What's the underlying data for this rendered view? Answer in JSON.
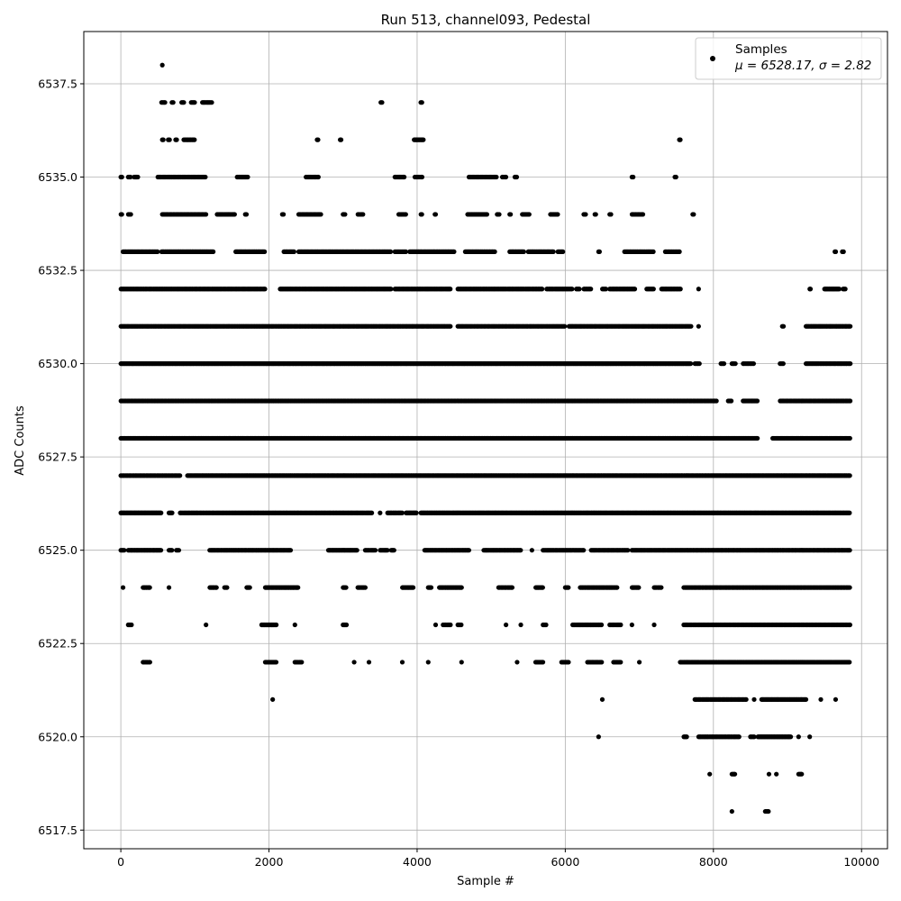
{
  "chart_data": {
    "type": "scatter",
    "title": "Run 513, channel093, Pedestal",
    "xlabel": "Sample #",
    "ylabel": "ADC Counts",
    "xlim": [
      -500,
      10350
    ],
    "ylim": [
      6517.0,
      6538.9
    ],
    "x_ticks": [
      0,
      2000,
      4000,
      6000,
      8000,
      10000
    ],
    "x_tick_labels": [
      "0",
      "2000",
      "4000",
      "6000",
      "8000",
      "10000"
    ],
    "y_ticks": [
      6517.5,
      6520.0,
      6522.5,
      6525.0,
      6527.5,
      6530.0,
      6532.5,
      6535.0,
      6537.5
    ],
    "y_tick_labels": [
      "6517.5",
      "6520.0",
      "6522.5",
      "6525.0",
      "6527.5",
      "6530.0",
      "6532.5",
      "6535.0",
      "6537.5"
    ],
    "grid": true,
    "legend_position": "top-right",
    "marker_color": "#000000",
    "series": [
      {
        "name": "Samples",
        "legend_label_line1": "Samples",
        "legend_label_line2": "μ = 6528.17, σ = 2.82",
        "points_description": "approx. 9850 samples over 0-9850 at integer ADC levels; listed ranges below",
        "level_ranges": [
          {
            "y": 6538,
            "ranges": [
              [
                560,
                560
              ]
            ]
          },
          {
            "y": 6537,
            "ranges": [
              [
                550,
                600
              ],
              [
                690,
                720
              ],
              [
                820,
                860
              ],
              [
                950,
                1000
              ],
              [
                1100,
                1230
              ],
              [
                3510,
                3530
              ],
              [
                4050,
                4070
              ]
            ]
          },
          {
            "y": 6536,
            "ranges": [
              [
                560,
                580
              ],
              [
                640,
                660
              ],
              [
                740,
                760
              ],
              [
                850,
                1000
              ],
              [
                2650,
                2670
              ],
              [
                2960,
                2980
              ],
              [
                3960,
                4090
              ],
              [
                7540,
                7560
              ]
            ]
          },
          {
            "y": 6535,
            "ranges": [
              [
                0,
                20
              ],
              [
                100,
                130
              ],
              [
                180,
                240
              ],
              [
                500,
                1150
              ],
              [
                1570,
                1720
              ],
              [
                2500,
                2680
              ],
              [
                3700,
                3830
              ],
              [
                3970,
                4070
              ],
              [
                4700,
                5070
              ],
              [
                5150,
                5200
              ],
              [
                5320,
                5350
              ],
              [
                6900,
                6920
              ],
              [
                7480,
                7500
              ]
            ]
          },
          {
            "y": 6534,
            "ranges": [
              [
                0,
                20
              ],
              [
                100,
                150
              ],
              [
                560,
                1150
              ],
              [
                1300,
                1550
              ],
              [
                1680,
                1700
              ],
              [
                2180,
                2200
              ],
              [
                2400,
                2700
              ],
              [
                3000,
                3030
              ],
              [
                3200,
                3280
              ],
              [
                3750,
                3850
              ],
              [
                4050,
                4070
              ],
              [
                4240,
                4260
              ],
              [
                4680,
                4950
              ],
              [
                5080,
                5120
              ],
              [
                5250,
                5270
              ],
              [
                5420,
                5520
              ],
              [
                5800,
                5900
              ],
              [
                6250,
                6280
              ],
              [
                6400,
                6420
              ],
              [
                6600,
                6620
              ],
              [
                6900,
                7050
              ],
              [
                7720,
                7740
              ]
            ]
          },
          {
            "y": 6533,
            "ranges": [
              [
                30,
                500
              ],
              [
                550,
                1250
              ],
              [
                1550,
                1950
              ],
              [
                2200,
                2350
              ],
              [
                2400,
                3650
              ],
              [
                3700,
                3850
              ],
              [
                3900,
                4500
              ],
              [
                4650,
                5050
              ],
              [
                5250,
                5450
              ],
              [
                5500,
                5850
              ],
              [
                5900,
                5980
              ],
              [
                6450,
                6470
              ],
              [
                6800,
                7200
              ],
              [
                7350,
                7550
              ],
              [
                9640,
                9660
              ],
              [
                9740,
                9760
              ]
            ]
          },
          {
            "y": 6532,
            "ranges": [
              [
                0,
                1950
              ],
              [
                2150,
                3650
              ],
              [
                3700,
                4450
              ],
              [
                4550,
                5700
              ],
              [
                5750,
                6100
              ],
              [
                6150,
                6200
              ],
              [
                6250,
                6350
              ],
              [
                6500,
                6550
              ],
              [
                6600,
                6950
              ],
              [
                7100,
                7200
              ],
              [
                7300,
                7560
              ],
              [
                7800,
                7800
              ],
              [
                9300,
                9320
              ],
              [
                9500,
                9700
              ],
              [
                9750,
                9780
              ]
            ]
          },
          {
            "y": 6531,
            "ranges": [
              [
                0,
                4450
              ],
              [
                4550,
                6000
              ],
              [
                6050,
                7700
              ],
              [
                7800,
                7800
              ],
              [
                8930,
                8950
              ],
              [
                9250,
                9850
              ]
            ]
          },
          {
            "y": 6530,
            "ranges": [
              [
                0,
                7700
              ],
              [
                7750,
                7820
              ],
              [
                8100,
                8150
              ],
              [
                8250,
                8300
              ],
              [
                8400,
                8550
              ],
              [
                8900,
                8950
              ],
              [
                9250,
                9850
              ]
            ]
          },
          {
            "y": 6529,
            "ranges": [
              [
                0,
                8050
              ],
              [
                8200,
                8250
              ],
              [
                8400,
                8600
              ],
              [
                8900,
                9850
              ]
            ]
          },
          {
            "y": 6528,
            "ranges": [
              [
                0,
                8600
              ],
              [
                8800,
                9850
              ]
            ]
          },
          {
            "y": 6527,
            "ranges": [
              [
                0,
                800
              ],
              [
                900,
                9850
              ]
            ]
          },
          {
            "y": 6526,
            "ranges": [
              [
                0,
                550
              ],
              [
                650,
                700
              ],
              [
                800,
                3400
              ],
              [
                3500,
                3500
              ],
              [
                3600,
                3800
              ],
              [
                3850,
                4000
              ],
              [
                4050,
                9850
              ]
            ]
          },
          {
            "y": 6525,
            "ranges": [
              [
                0,
                50
              ],
              [
                100,
                550
              ],
              [
                650,
                700
              ],
              [
                750,
                800
              ],
              [
                1200,
                2300
              ],
              [
                2800,
                3200
              ],
              [
                3300,
                3450
              ],
              [
                3500,
                3600
              ],
              [
                3650,
                3700
              ],
              [
                4100,
                4700
              ],
              [
                4900,
                5400
              ],
              [
                5550,
                5550
              ],
              [
                5700,
                6250
              ],
              [
                6350,
                6850
              ],
              [
                6900,
                9850
              ]
            ]
          },
          {
            "y": 6524,
            "ranges": [
              [
                30,
                30
              ],
              [
                300,
                400
              ],
              [
                650,
                650
              ],
              [
                1200,
                1300
              ],
              [
                1400,
                1450
              ],
              [
                1700,
                1750
              ],
              [
                1950,
                2400
              ],
              [
                3000,
                3050
              ],
              [
                3200,
                3300
              ],
              [
                3800,
                3950
              ],
              [
                4150,
                4200
              ],
              [
                4300,
                4600
              ],
              [
                5100,
                5300
              ],
              [
                5600,
                5700
              ],
              [
                6000,
                6050
              ],
              [
                6200,
                6700
              ],
              [
                6900,
                7000
              ],
              [
                7200,
                7300
              ],
              [
                7600,
                9850
              ]
            ]
          },
          {
            "y": 6523,
            "ranges": [
              [
                100,
                150
              ],
              [
                1150,
                1150
              ],
              [
                1900,
                2100
              ],
              [
                2350,
                2350
              ],
              [
                3000,
                3050
              ],
              [
                4250,
                4250
              ],
              [
                4350,
                4450
              ],
              [
                4550,
                4600
              ],
              [
                5200,
                5200
              ],
              [
                5400,
                5400
              ],
              [
                5700,
                5750
              ],
              [
                6100,
                6500
              ],
              [
                6600,
                6750
              ],
              [
                6900,
                6900
              ],
              [
                7200,
                7200
              ],
              [
                7600,
                9850
              ]
            ]
          },
          {
            "y": 6522,
            "ranges": [
              [
                300,
                400
              ],
              [
                1950,
                2100
              ],
              [
                2350,
                2450
              ],
              [
                3150,
                3150
              ],
              [
                3350,
                3350
              ],
              [
                3800,
                3800
              ],
              [
                4150,
                4150
              ],
              [
                4600,
                4600
              ],
              [
                5350,
                5350
              ],
              [
                5600,
                5700
              ],
              [
                5950,
                6050
              ],
              [
                6300,
                6500
              ],
              [
                6650,
                6750
              ],
              [
                7000,
                7000
              ],
              [
                7550,
                9850
              ]
            ]
          },
          {
            "y": 6521,
            "ranges": [
              [
                2050,
                2050
              ],
              [
                6500,
                6500
              ],
              [
                7750,
                8450
              ],
              [
                8550,
                8550
              ],
              [
                8650,
                9250
              ],
              [
                9450,
                9450
              ],
              [
                9650,
                9650
              ]
            ]
          },
          {
            "y": 6520,
            "ranges": [
              [
                6450,
                6450
              ],
              [
                7600,
                7650
              ],
              [
                7800,
                8350
              ],
              [
                8500,
                8550
              ],
              [
                8600,
                9050
              ],
              [
                9150,
                9150
              ],
              [
                9300,
                9300
              ]
            ]
          },
          {
            "y": 6519,
            "ranges": [
              [
                7950,
                7950
              ],
              [
                8250,
                8300
              ],
              [
                8750,
                8750
              ],
              [
                8850,
                8850
              ],
              [
                9150,
                9200
              ]
            ]
          },
          {
            "y": 6518,
            "ranges": [
              [
                8250,
                8250
              ],
              [
                8700,
                8750
              ]
            ]
          }
        ]
      }
    ]
  }
}
